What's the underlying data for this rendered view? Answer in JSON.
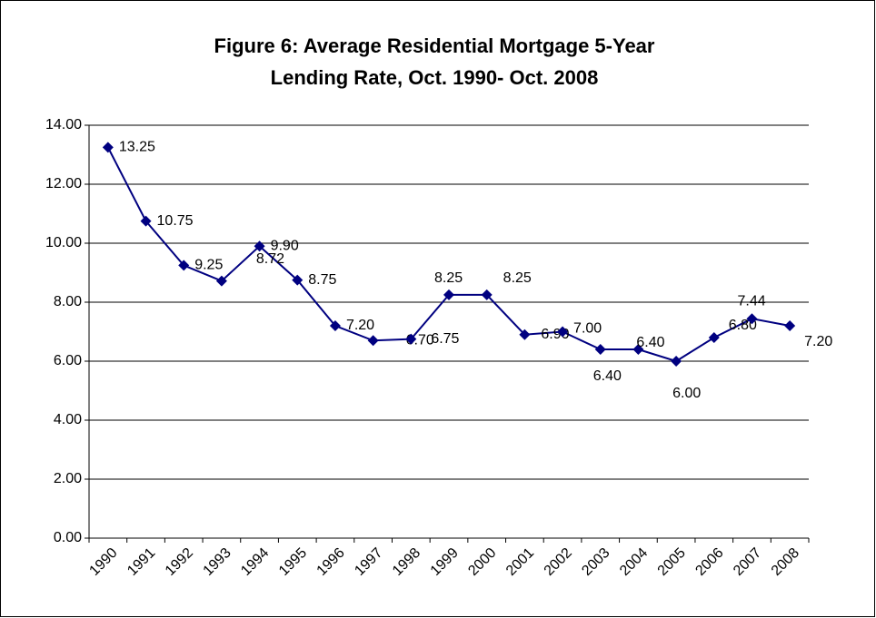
{
  "chart_data": {
    "type": "line",
    "title": [
      "Figure 6:  Average Residential Mortgage 5-Year",
      "Lending Rate, Oct. 1990- Oct. 2008"
    ],
    "categories": [
      "1990",
      "1991",
      "1992",
      "1993",
      "1994",
      "1995",
      "1996",
      "1997",
      "1998",
      "1999",
      "2000",
      "2001",
      "2002",
      "2003",
      "2004",
      "2005",
      "2006",
      "2007",
      "2008"
    ],
    "series": [
      {
        "color": "#000080",
        "values": [
          13.25,
          10.75,
          9.25,
          8.72,
          9.9,
          8.75,
          7.2,
          6.7,
          6.75,
          8.25,
          8.25,
          6.9,
          7.0,
          6.4,
          6.4,
          6.0,
          6.8,
          7.44,
          7.2
        ],
        "value_labels": [
          "13.25",
          "10.75",
          "9.25",
          "8.72",
          "9.90",
          "8.75",
          "7.20",
          "6.70",
          "6.75",
          "8.25",
          "8.25",
          "6.90",
          "7.00",
          "6.40",
          "6.40",
          "6.00",
          "6.80",
          "7.44",
          "7.20"
        ]
      }
    ],
    "ylim": [
      0,
      14
    ],
    "yticks": [
      {
        "value": 0,
        "label": "0.00"
      },
      {
        "value": 2,
        "label": "2.00"
      },
      {
        "value": 4,
        "label": "4.00"
      },
      {
        "value": 6,
        "label": "6.00"
      },
      {
        "value": 8,
        "label": "8.00"
      },
      {
        "value": 10,
        "label": "10.00"
      },
      {
        "value": 12,
        "label": "12.00"
      },
      {
        "value": 14,
        "label": "14.00"
      }
    ],
    "grid": true
  }
}
